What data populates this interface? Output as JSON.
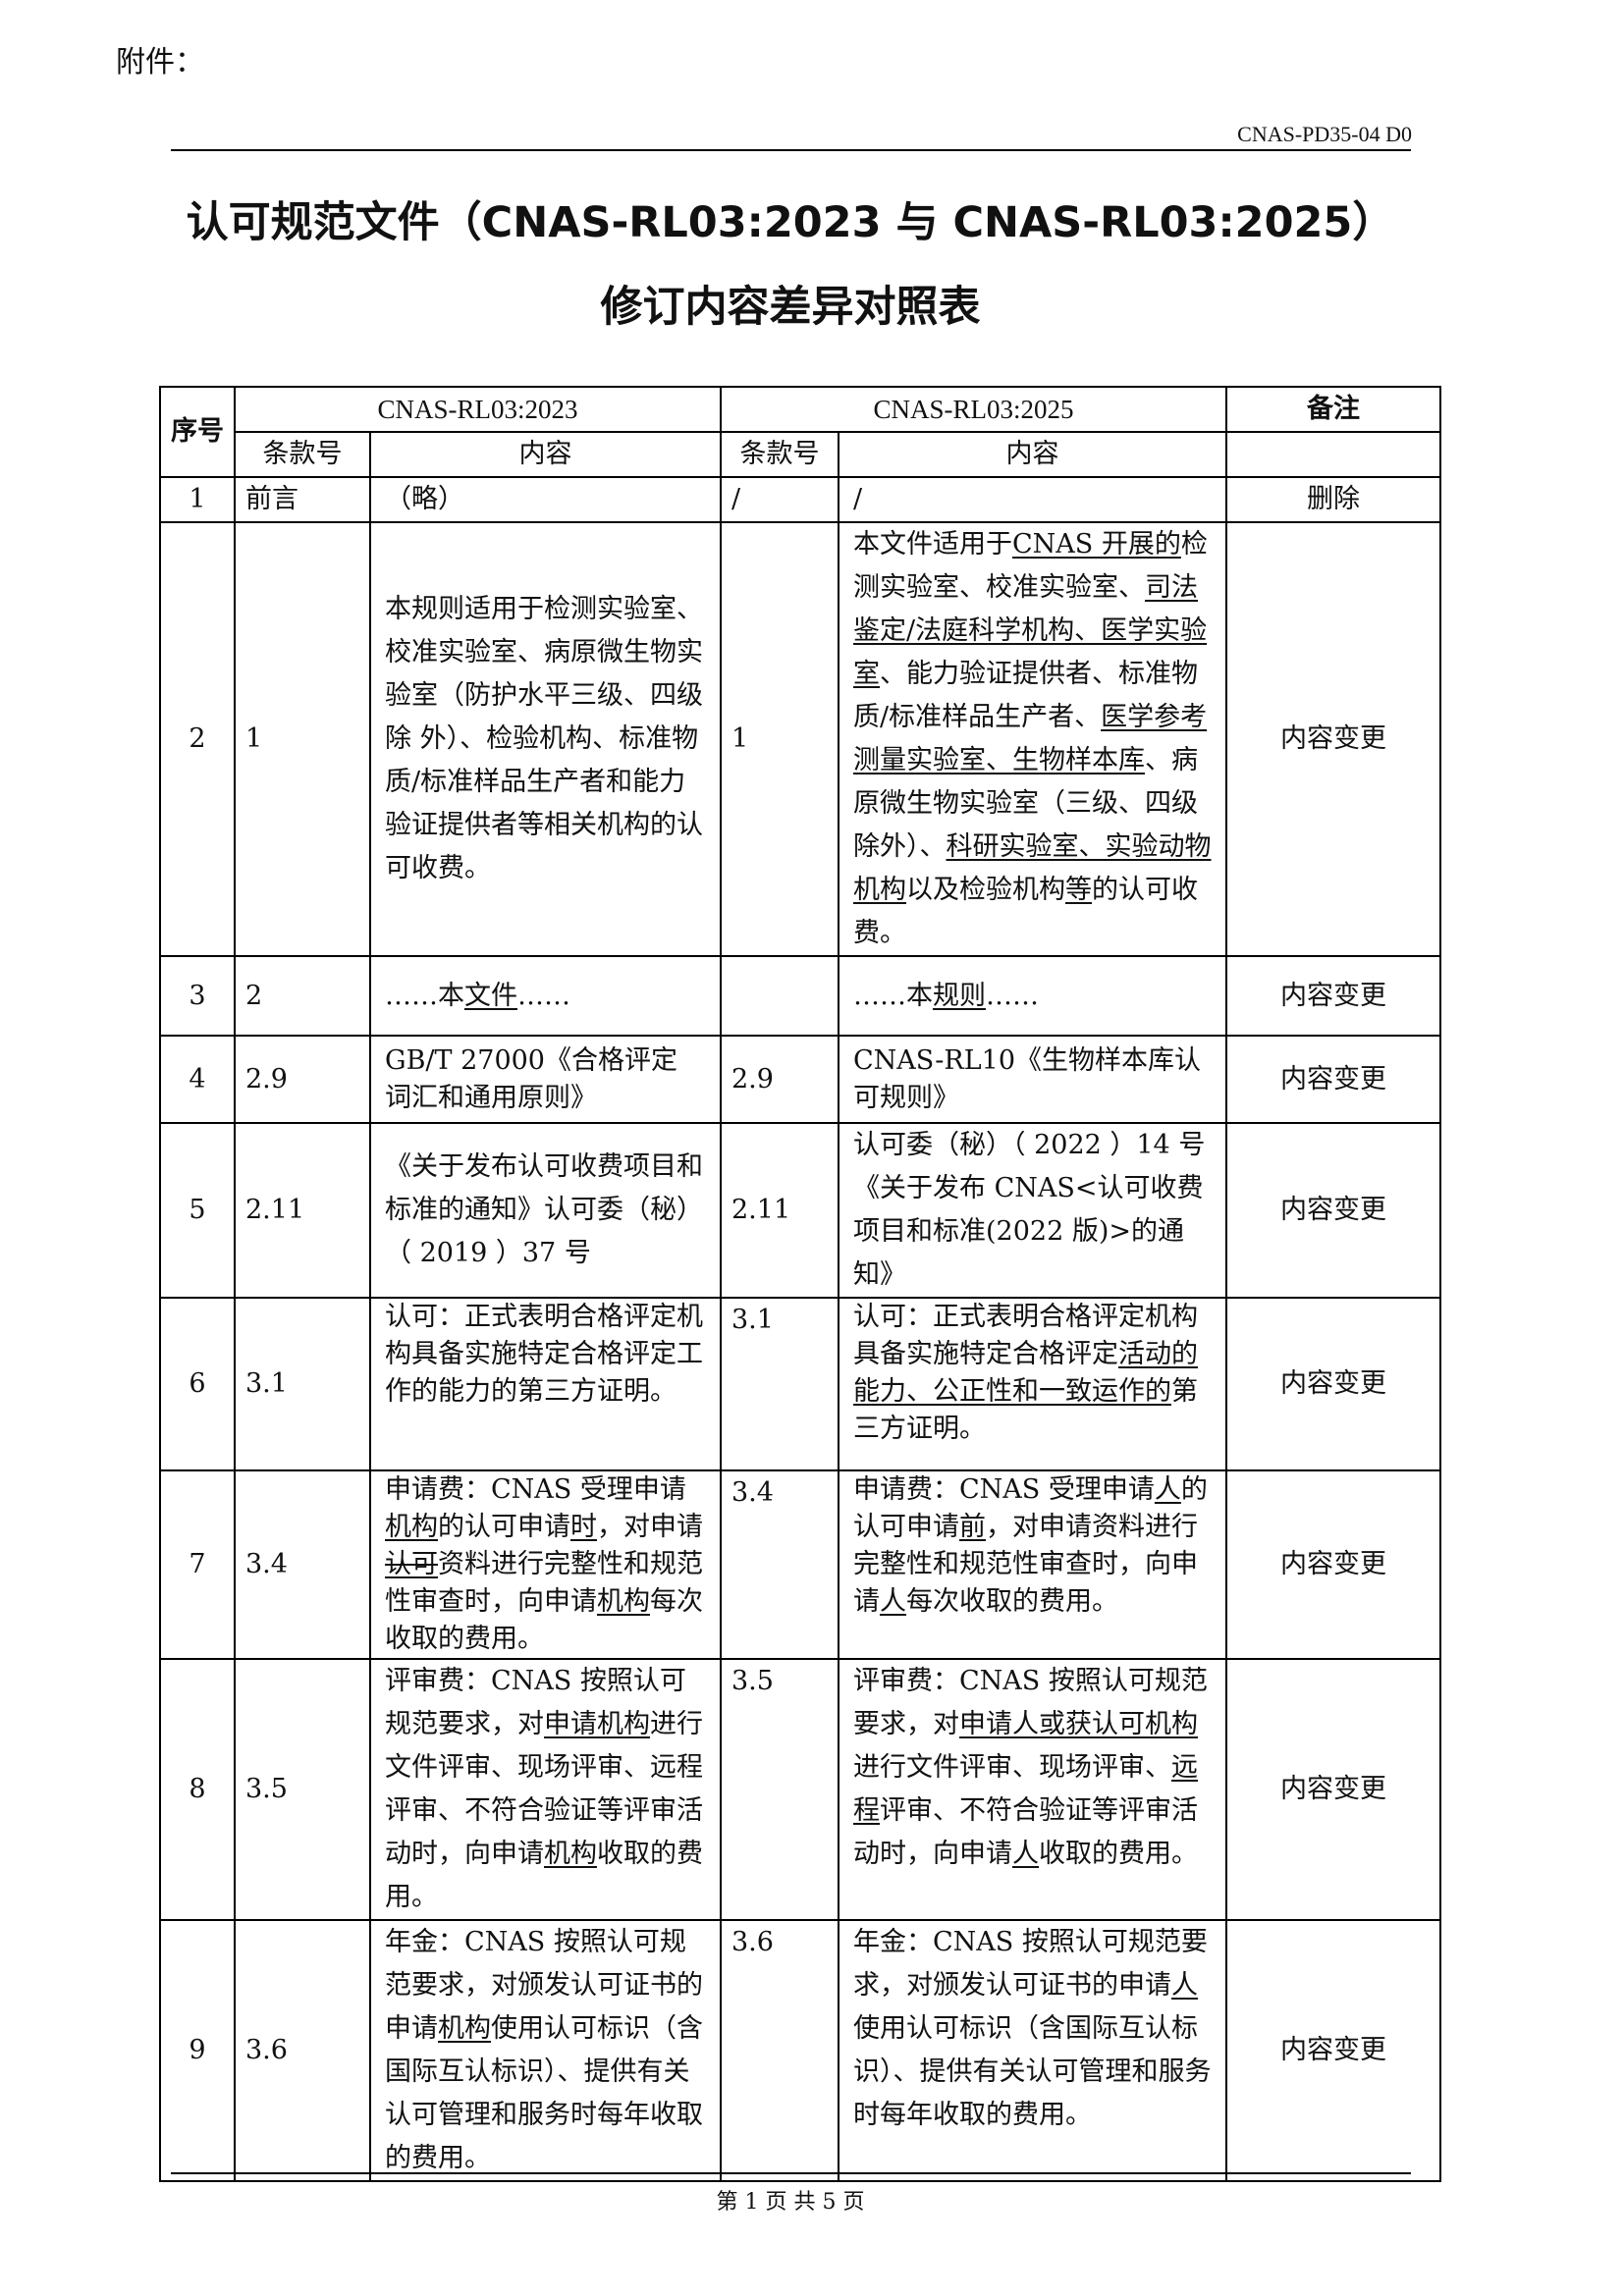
{
  "attachment_label": "附件：",
  "doc_number": "CNAS-PD35-04 D0",
  "title_line1": "认可规范文件（CNAS-RL03:2023 与 CNAS-RL03:2025）",
  "title_line2": "修订内容差异对照表",
  "table": {
    "header": {
      "seq": "序号",
      "old_version": "CNAS-RL03:2023",
      "new_version": "CNAS-RL03:2025",
      "remark": "备注",
      "clause": "条款号",
      "content": "内容"
    },
    "rows": [
      {
        "seq": "1",
        "old_clause": "前言",
        "old_content": [
          "（略）"
        ],
        "new_clause": "/",
        "new_content": [
          "/"
        ],
        "remark": "删除"
      },
      {
        "seq": "2",
        "old_clause": "1",
        "old_content": [
          "本规则适用于检测实验室、校准实验室、病原微生物实验室（防护水平三级、四级除 外）、检验机构、标准物质/标准样品生产者和能力验证提供者等相关机构的认可收费。"
        ],
        "new_clause": "1",
        "new_content": [
          "本文件适用于",
          {
            "u": "CNAS 开展的"
          },
          "检测实验室、校准实验室、",
          {
            "u": "司法鉴定/法庭科学机构、医学实验室"
          },
          "、能力验证提供者、标准物质/标准样品生产者、",
          {
            "u": "医学参考测量实验室、生物样本库"
          },
          "、病原微生物实验室（三级、四级除外）、",
          {
            "u": "科研实验室、实验动物机构"
          },
          "以及检验机构",
          {
            "u": "等"
          },
          "的认可收费。"
        ],
        "remark": "内容变更"
      },
      {
        "seq": "3",
        "old_clause": "2",
        "old_content": [
          "……本",
          {
            "u": "文件"
          },
          "……"
        ],
        "new_clause": "",
        "new_content": [
          "……本",
          {
            "u": "规则"
          },
          "……"
        ],
        "remark": "内容变更"
      },
      {
        "seq": "4",
        "old_clause": "2.9",
        "old_content": [
          "GB/T 27000《合格评定 词汇和通用原则》"
        ],
        "new_clause": "2.9",
        "new_content": [
          "CNAS-RL10《生物样本库认可规则》"
        ],
        "remark": "内容变更"
      },
      {
        "seq": "5",
        "old_clause": "2.11",
        "old_content": [
          "《关于发布认可收费项目和标准的通知》认可委（秘）（ 2019 ）37 号"
        ],
        "new_clause": "2.11",
        "new_content": [
          "认可委（秘）（ 2022 ）14 号《关于发布 CNAS<认可收费项目和标准(2022 版)>的通知》"
        ],
        "remark": "内容变更"
      },
      {
        "seq": "6",
        "old_clause": "3.1",
        "old_content": [
          "认可：正式表明合格评定机构具备实施特定合格评定工作的能力的第三方证明。"
        ],
        "new_clause": "3.1",
        "new_content": [
          "认可：正式表明合格评定机构具备实施特定合格评定",
          {
            "u": "活动的能力、公正性和一致运作的"
          },
          "第三方证明。"
        ],
        "remark": "内容变更"
      },
      {
        "seq": "7",
        "old_clause": "3.4",
        "old_content": [
          "申请费：CNAS 受理申请",
          {
            "u": "机构"
          },
          "的认可申请",
          {
            "u": "时"
          },
          "，对申请",
          {
            "s": "认可"
          },
          "资料进行完整性和规范性审查时，向申请",
          {
            "u": "机构"
          },
          "每次收取的费用。"
        ],
        "new_clause": "3.4",
        "new_content": [
          "申请费：CNAS 受理申请",
          {
            "u": "人"
          },
          "的认可申请",
          {
            "u": "前"
          },
          "，对申请资料进行完整性和规范性审查时，向申请",
          {
            "u": "人"
          },
          "每次收取的费用。"
        ],
        "remark": "内容变更"
      },
      {
        "seq": "8",
        "old_clause": "3.5",
        "old_content": [
          "评审费：CNAS 按照认可规范要求，对",
          {
            "u": "申请机构"
          },
          "进行文件评审、现场评审、远程评审、不符合验证等评审活动时，向申请",
          {
            "u": "机构"
          },
          "收取的费用。"
        ],
        "new_clause": "3.5",
        "new_content": [
          "评审费：CNAS 按照认可规范要求，对",
          {
            "u": "申请人或获认可机构"
          },
          "进行文件评审、现场评审、",
          {
            "u": "远程"
          },
          "评审、不符合验证等评审活动时，向申请",
          {
            "u": "人"
          },
          "收取的费用。"
        ],
        "remark": "内容变更"
      },
      {
        "seq": "9",
        "old_clause": "3.6",
        "old_content": [
          "年金：CNAS 按照认可规范要求，对颁发认可证书的申请",
          {
            "u": "机构"
          },
          "使用认可标识（含国际互认标识）、提供有关认可管理和服务时每年收取的费用。"
        ],
        "new_clause": "3.6",
        "new_content": [
          "年金：CNAS 按照认可规范要求，对颁发认可证书的申请",
          {
            "u": "人"
          },
          "使用认可标识（含国际互认标识）、提供有关认可管理和服务时每年收取的费用。"
        ],
        "remark": "内容变更"
      }
    ]
  },
  "footer": "第 1 页 共 5 页"
}
